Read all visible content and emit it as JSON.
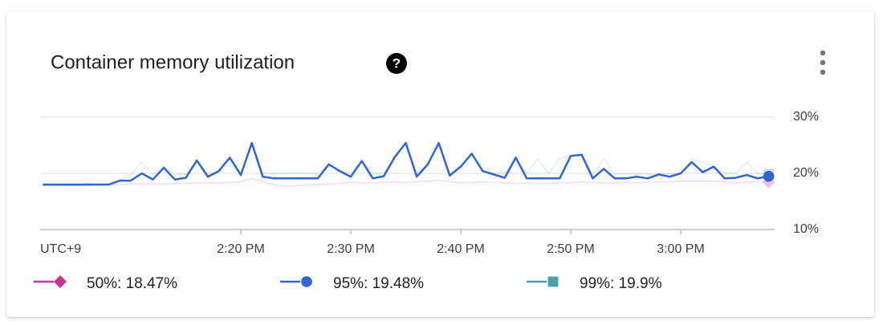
{
  "chart_data": {
    "type": "line",
    "title": "Container memory utilization",
    "help_icon": "?",
    "timezone_label": "UTC+9",
    "x": [
      "2:02 PM",
      "2:03 PM",
      "2:04 PM",
      "2:05 PM",
      "2:06 PM",
      "2:07 PM",
      "2:08 PM",
      "2:09 PM",
      "2:10 PM",
      "2:11 PM",
      "2:12 PM",
      "2:13 PM",
      "2:14 PM",
      "2:15 PM",
      "2:16 PM",
      "2:17 PM",
      "2:18 PM",
      "2:19 PM",
      "2:20 PM",
      "2:21 PM",
      "2:22 PM",
      "2:23 PM",
      "2:24 PM",
      "2:25 PM",
      "2:26 PM",
      "2:27 PM",
      "2:28 PM",
      "2:29 PM",
      "2:30 PM",
      "2:31 PM",
      "2:32 PM",
      "2:33 PM",
      "2:34 PM",
      "2:35 PM",
      "2:36 PM",
      "2:37 PM",
      "2:38 PM",
      "2:39 PM",
      "2:40 PM",
      "2:41 PM",
      "2:42 PM",
      "2:43 PM",
      "2:44 PM",
      "2:45 PM",
      "2:46 PM",
      "2:47 PM",
      "2:48 PM",
      "2:49 PM",
      "2:50 PM",
      "2:51 PM",
      "2:52 PM",
      "2:53 PM",
      "2:54 PM",
      "2:55 PM",
      "2:56 PM",
      "2:57 PM",
      "2:58 PM",
      "2:59 PM",
      "3:00 PM",
      "3:01 PM",
      "3:02 PM",
      "3:03 PM",
      "3:04 PM",
      "3:05 PM",
      "3:06 PM",
      "3:07 PM",
      "3:08 PM"
    ],
    "xticks": [
      "2:20 PM",
      "2:30 PM",
      "2:40 PM",
      "2:50 PM",
      "3:00 PM"
    ],
    "ylim": [
      10,
      30
    ],
    "yticks": [
      {
        "value": 10,
        "label": "10%"
      },
      {
        "value": 20,
        "label": "20%"
      },
      {
        "value": 30,
        "label": "30%"
      }
    ],
    "grid": true,
    "highlight_series": 1,
    "series": [
      {
        "name": "50%: 18.47%",
        "color": "#c2378f",
        "marker": "diamond",
        "values": [
          17.9,
          17.9,
          17.9,
          17.9,
          17.9,
          18.0,
          18.0,
          18.0,
          18.1,
          18.1,
          18.1,
          18.1,
          18.2,
          18.2,
          18.3,
          18.3,
          18.3,
          18.4,
          18.5,
          19.1,
          18.5,
          18.0,
          17.7,
          17.8,
          17.9,
          18.0,
          18.1,
          18.2,
          18.4,
          18.3,
          18.3,
          18.4,
          18.5,
          18.3,
          18.5,
          18.6,
          18.8,
          18.5,
          18.3,
          18.4,
          18.5,
          18.4,
          18.3,
          18.2,
          18.3,
          18.2,
          18.2,
          18.4,
          18.3,
          18.5,
          18.4,
          18.3,
          18.3,
          18.4,
          18.3,
          18.4,
          18.5,
          18.5,
          18.6,
          18.6,
          18.6,
          18.6,
          18.5,
          18.3,
          18.4,
          18.5,
          18.47
        ]
      },
      {
        "name": "95%: 19.48%",
        "color": "#3366cc",
        "marker": "circle",
        "values": [
          18.0,
          18.0,
          18.0,
          18.0,
          18.0,
          18.0,
          18.0,
          18.7,
          18.7,
          20.0,
          18.9,
          21.0,
          18.9,
          19.2,
          22.3,
          19.4,
          20.4,
          22.8,
          19.7,
          25.4,
          19.4,
          19.1,
          19.1,
          19.1,
          19.1,
          19.1,
          21.6,
          20.4,
          19.4,
          22.2,
          19.1,
          19.5,
          22.9,
          25.4,
          19.4,
          21.6,
          25.4,
          19.6,
          21.2,
          23.5,
          20.4,
          19.8,
          19.2,
          22.8,
          19.1,
          19.1,
          19.1,
          19.1,
          23.1,
          23.3,
          19.1,
          20.8,
          19.1,
          19.1,
          19.4,
          19.1,
          19.8,
          19.4,
          20.0,
          22.0,
          20.2,
          21.2,
          19.1,
          19.2,
          19.7,
          19.1,
          19.48
        ]
      },
      {
        "name": "99%: 19.9%",
        "color": "#4aa3ac",
        "marker": "square",
        "values": [
          17.8,
          17.8,
          17.8,
          17.8,
          17.8,
          18.0,
          18.0,
          18.8,
          19.8,
          22.0,
          19.8,
          21.2,
          19.8,
          19.8,
          22.3,
          19.9,
          20.4,
          22.8,
          19.9,
          25.4,
          20.0,
          20.0,
          20.0,
          20.0,
          20.0,
          20.0,
          21.6,
          20.4,
          20.0,
          22.2,
          20.0,
          20.0,
          22.9,
          25.4,
          20.0,
          21.6,
          25.4,
          20.0,
          21.2,
          23.5,
          20.4,
          20.0,
          20.0,
          22.8,
          19.9,
          22.6,
          19.9,
          22.6,
          23.1,
          23.3,
          19.9,
          22.6,
          19.9,
          19.9,
          19.9,
          19.9,
          19.9,
          19.9,
          20.0,
          22.6,
          22.0,
          21.2,
          20.0,
          20.0,
          22.0,
          20.0,
          19.9
        ]
      }
    ]
  }
}
